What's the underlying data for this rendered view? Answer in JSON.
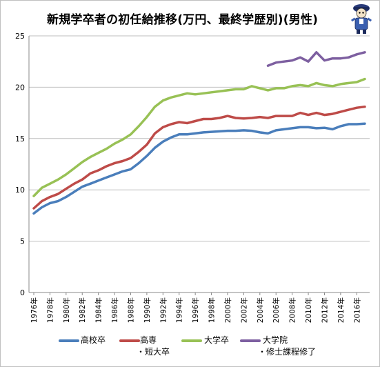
{
  "title": "新規学卒者の初任給推移(万円、最終学歴別)(男性)",
  "chart_data": {
    "type": "line",
    "title": "新規学卒者の初任給推移(万円、最終学歴別)(男性)",
    "x": [
      1976,
      1977,
      1978,
      1979,
      1980,
      1981,
      1982,
      1983,
      1984,
      1985,
      1986,
      1987,
      1988,
      1989,
      1990,
      1991,
      1992,
      1993,
      1994,
      1995,
      1996,
      1997,
      1998,
      1999,
      2000,
      2001,
      2002,
      2003,
      2004,
      2005,
      2006,
      2007,
      2008,
      2009,
      2010,
      2011,
      2012,
      2013,
      2014,
      2015,
      2016,
      2017
    ],
    "x_tick_labels": [
      "1976年",
      "1978年",
      "1980年",
      "1982年",
      "1984年",
      "1986年",
      "1988年",
      "1990年",
      "1992年",
      "1994年",
      "1996年",
      "1998年",
      "2000年",
      "2002年",
      "2004年",
      "2006年",
      "2008年",
      "2010年",
      "2012年",
      "2014年",
      "2016年"
    ],
    "ylim": [
      0,
      25
    ],
    "y_ticks": [
      0,
      5,
      10,
      15,
      20,
      25
    ],
    "grid": "horizontal",
    "legend_position": "bottom",
    "series": [
      {
        "name": "高校卒",
        "color": "#4a7ebb",
        "values": [
          7.7,
          8.3,
          8.7,
          8.9,
          9.3,
          9.8,
          10.3,
          10.6,
          10.9,
          11.2,
          11.5,
          11.8,
          12.0,
          12.6,
          13.3,
          14.1,
          14.7,
          15.1,
          15.4,
          15.4,
          15.5,
          15.6,
          15.65,
          15.7,
          15.75,
          15.75,
          15.8,
          15.75,
          15.6,
          15.5,
          15.8,
          15.9,
          16.0,
          16.1,
          16.1,
          16.0,
          16.05,
          15.9,
          16.2,
          16.4,
          16.4,
          16.45
        ]
      },
      {
        "name": "高専・短大卒",
        "color": "#be4b48",
        "values": [
          8.2,
          8.9,
          9.3,
          9.6,
          10.1,
          10.6,
          11.0,
          11.6,
          11.9,
          12.3,
          12.6,
          12.8,
          13.1,
          13.7,
          14.4,
          15.5,
          16.1,
          16.4,
          16.6,
          16.5,
          16.7,
          16.9,
          16.9,
          17.0,
          17.2,
          17.0,
          16.95,
          17.0,
          17.1,
          17.0,
          17.2,
          17.2,
          17.2,
          17.5,
          17.3,
          17.5,
          17.3,
          17.4,
          17.6,
          17.8,
          18.0,
          18.1
        ]
      },
      {
        "name": "大学卒",
        "color": "#98c155",
        "values": [
          9.4,
          10.2,
          10.6,
          11.0,
          11.5,
          12.1,
          12.7,
          13.2,
          13.6,
          14.0,
          14.5,
          14.9,
          15.4,
          16.2,
          17.1,
          18.1,
          18.7,
          19.0,
          19.2,
          19.4,
          19.3,
          19.4,
          19.5,
          19.6,
          19.7,
          19.8,
          19.8,
          20.1,
          19.9,
          19.7,
          19.9,
          19.9,
          20.1,
          20.2,
          20.1,
          20.4,
          20.2,
          20.1,
          20.3,
          20.4,
          20.5,
          20.8
        ]
      },
      {
        "name": "大学院・修士課程修了",
        "color": "#7d5fa0",
        "values": [
          null,
          null,
          null,
          null,
          null,
          null,
          null,
          null,
          null,
          null,
          null,
          null,
          null,
          null,
          null,
          null,
          null,
          null,
          null,
          null,
          null,
          null,
          null,
          null,
          null,
          null,
          null,
          null,
          null,
          22.1,
          22.4,
          22.5,
          22.6,
          22.9,
          22.5,
          23.4,
          22.6,
          22.8,
          22.8,
          22.9,
          23.2,
          23.4
        ]
      }
    ]
  },
  "legend": [
    {
      "line1": "高校卒",
      "line2": ""
    },
    {
      "line1": "高専",
      "line2": "・短大卒"
    },
    {
      "line1": "大学卒",
      "line2": ""
    },
    {
      "line1": "大学院",
      "line2": "・修士課程修了"
    }
  ]
}
